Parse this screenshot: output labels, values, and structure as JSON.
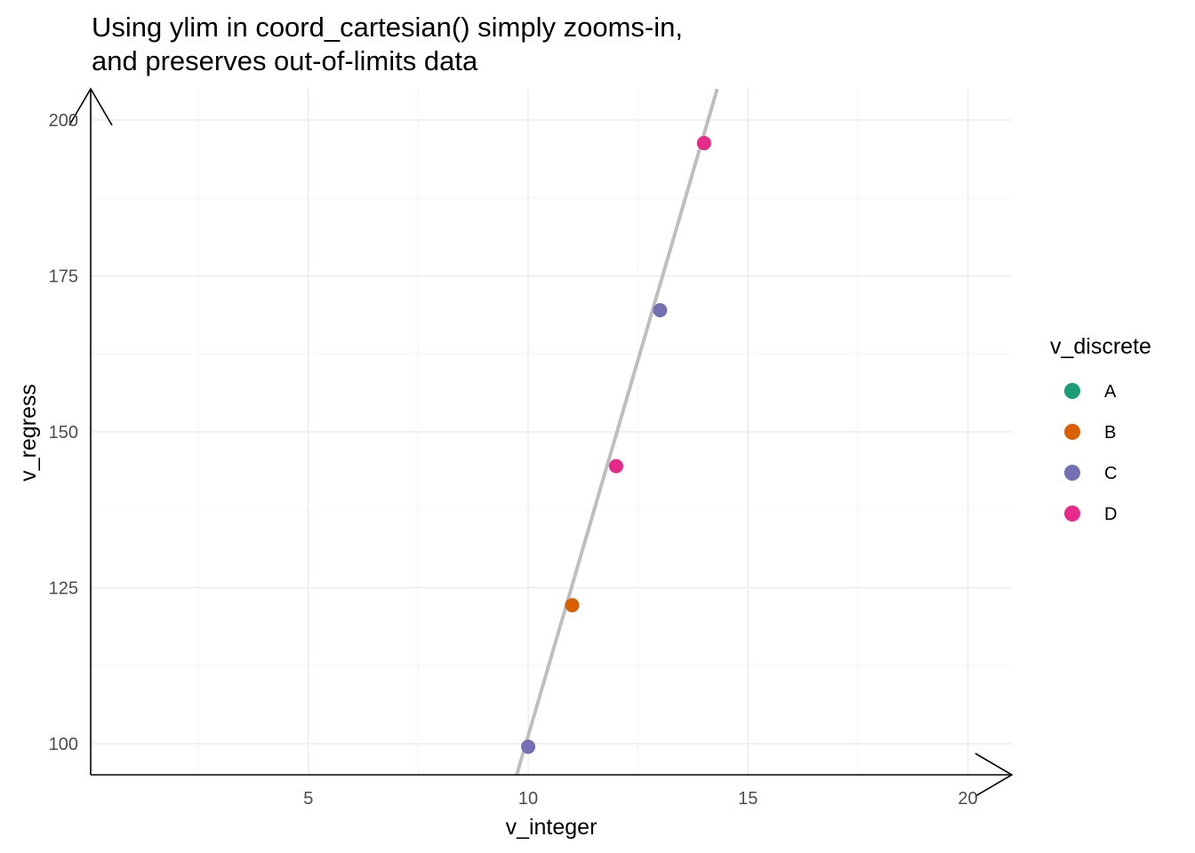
{
  "chart_data": {
    "type": "scatter",
    "title_lines": [
      "Using ylim in coord_cartesian() simply zooms-in,",
      "and preserves out-of-limits data"
    ],
    "xlabel": "v_integer",
    "ylabel": "v_regress",
    "xlim": [
      0.05,
      21.0
    ],
    "ylim": [
      95.0,
      205.0
    ],
    "x_ticks": [
      5,
      10,
      15,
      20
    ],
    "y_ticks": [
      100,
      125,
      150,
      175,
      200
    ],
    "x_minor": [
      2.5,
      7.5,
      12.5,
      17.5
    ],
    "y_minor": [
      112.5,
      137.5,
      162.5,
      187.5
    ],
    "grid": true,
    "legend": {
      "title": "v_discrete",
      "position": "right",
      "entries": [
        {
          "label": "A",
          "color": "#1b9e77"
        },
        {
          "label": "B",
          "color": "#d95f02"
        },
        {
          "label": "C",
          "color": "#7570b3"
        },
        {
          "label": "D",
          "color": "#e7298a"
        }
      ]
    },
    "points": [
      {
        "x": 10,
        "y": 99.5,
        "group": "C"
      },
      {
        "x": 11,
        "y": 122.2,
        "group": "B"
      },
      {
        "x": 12,
        "y": 144.5,
        "group": "D"
      },
      {
        "x": 13,
        "y": 169.5,
        "group": "C"
      },
      {
        "x": 14,
        "y": 196.3,
        "group": "D"
      }
    ],
    "regression_line": {
      "color": "#bebebe",
      "x": [
        9.74,
        14.3
      ],
      "y": [
        95.0,
        205.0
      ]
    }
  }
}
